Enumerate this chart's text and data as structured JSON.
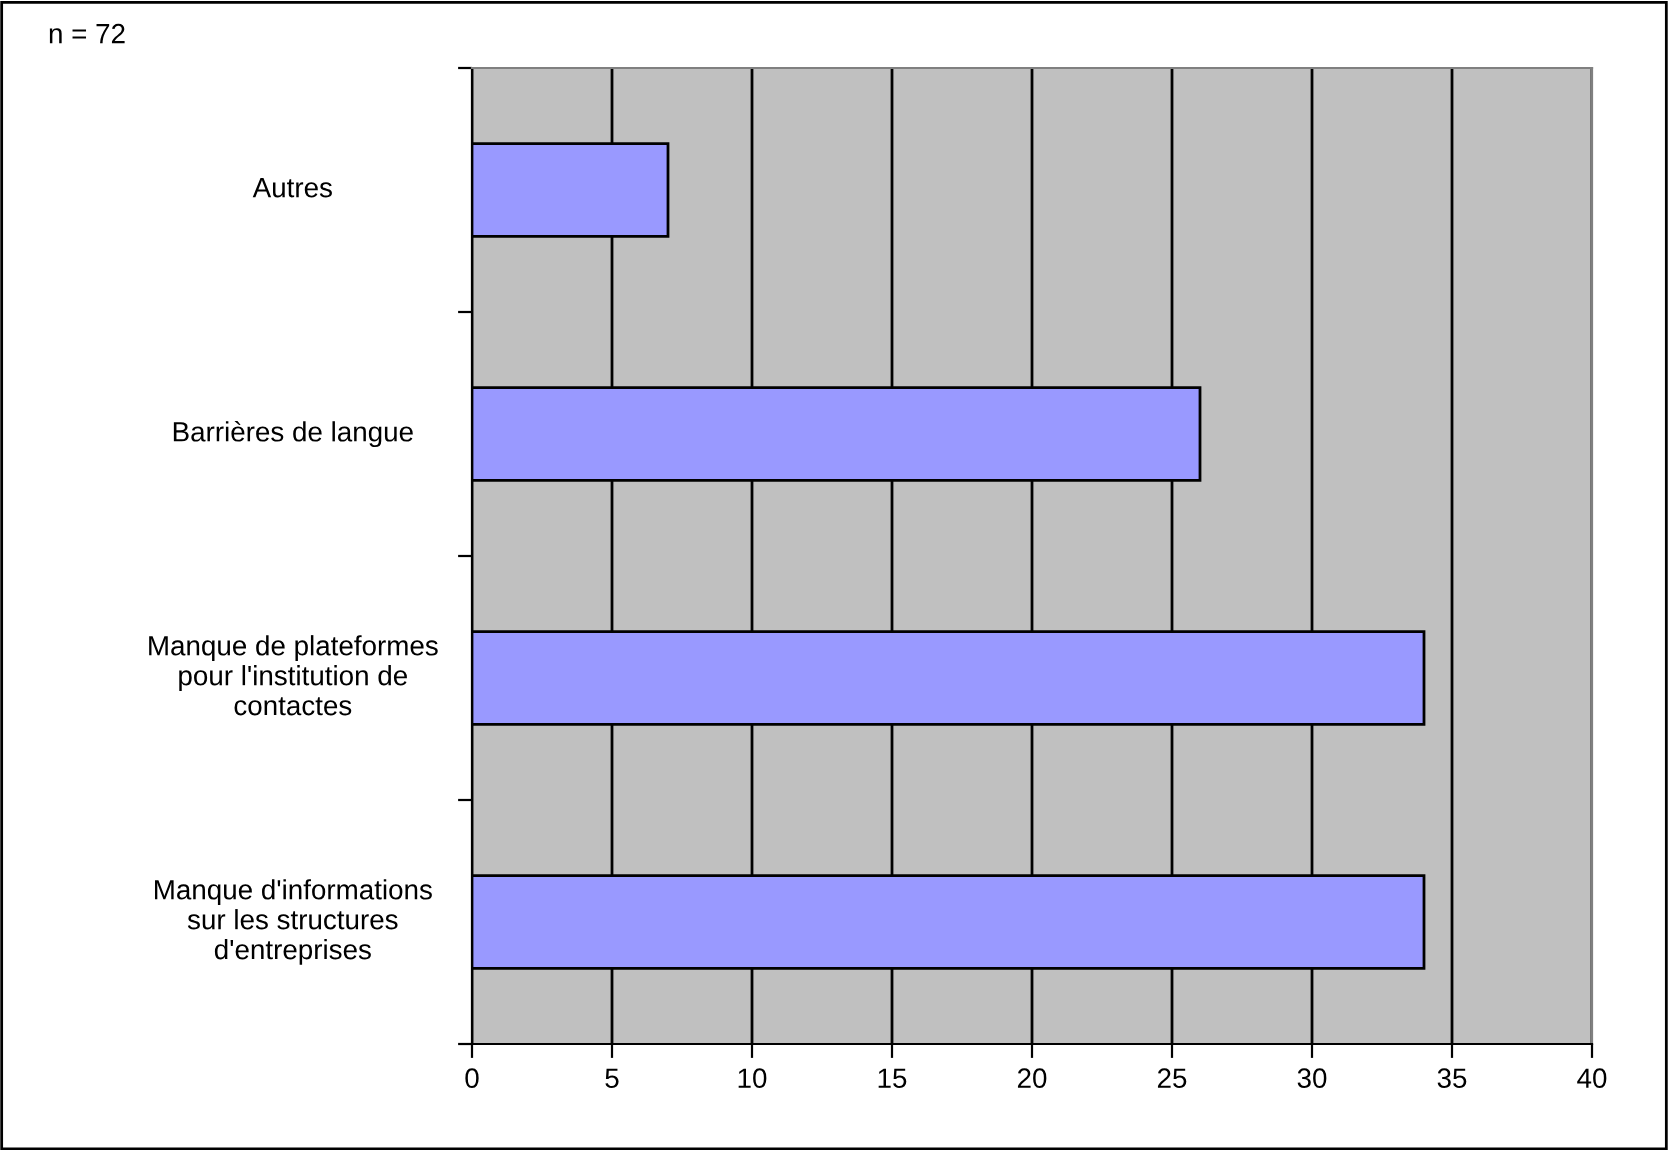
{
  "chart_data": {
    "type": "bar",
    "orientation": "horizontal",
    "categories": [
      "Autres",
      "Barrières de langue",
      "Manque de plateformes\npour l'institution de\ncontactes",
      "Manque d'informations\nsur les structures\nd'entreprises"
    ],
    "values": [
      7,
      26,
      34,
      34
    ],
    "color": "#9999ff",
    "xlim": [
      0,
      40
    ],
    "xticks": [
      0,
      5,
      10,
      15,
      20,
      25,
      30,
      35,
      40
    ],
    "grid": "x",
    "annotations": [
      "n = 72"
    ]
  }
}
